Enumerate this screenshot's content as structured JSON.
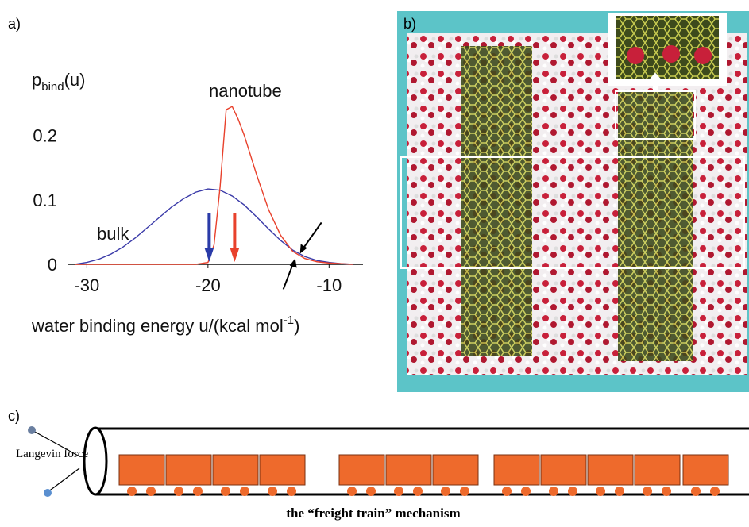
{
  "chart_data": {
    "type": "line",
    "y_label_parts": [
      "p",
      "bind",
      "(u)"
    ],
    "x_label_parts": [
      "water binding energy u/(kcal mol",
      "-1",
      ")"
    ],
    "series": [
      {
        "name": "bulk",
        "color": "#3a3aa8",
        "x": [
          -31,
          -30,
          -29,
          -28,
          -27,
          -26,
          -25,
          -24,
          -23,
          -22,
          -21,
          -20,
          -19,
          -18,
          -17,
          -16,
          -15,
          -14,
          -13,
          -12,
          -11,
          -10,
          -9,
          -8
        ],
        "values": [
          0,
          0.003,
          0.008,
          0.016,
          0.027,
          0.041,
          0.057,
          0.073,
          0.089,
          0.102,
          0.112,
          0.117,
          0.115,
          0.106,
          0.092,
          0.074,
          0.055,
          0.037,
          0.022,
          0.012,
          0.006,
          0.003,
          0.001,
          0
        ]
      },
      {
        "name": "nanotube",
        "color": "#e8412c",
        "x": [
          -31,
          -25,
          -21,
          -20,
          -19.5,
          -19,
          -18.5,
          -18,
          -17.5,
          -17,
          -16,
          -15,
          -14,
          -13,
          -12,
          -11,
          -10,
          -9,
          -8
        ],
        "values": [
          0,
          0,
          0,
          0.003,
          0.03,
          0.12,
          0.24,
          0.245,
          0.225,
          0.2,
          0.14,
          0.085,
          0.045,
          0.02,
          0.009,
          0.004,
          0.002,
          0.001,
          0
        ]
      }
    ],
    "mean_arrows": [
      {
        "x": -19.9,
        "color": "#2a3ba8"
      },
      {
        "x": -17.8,
        "color": "#e8412c"
      }
    ],
    "crossing_x": -12.6,
    "xlim": [
      -31.6,
      -7.2
    ],
    "ylim": [
      0,
      0.26
    ],
    "xticks": [
      -30,
      -20,
      -10
    ],
    "yticks": [
      0,
      0.1,
      0.2
    ],
    "grid": false
  },
  "figure": {
    "panel_labels": [
      "a)",
      "b)",
      "c)"
    ],
    "diagram": {
      "force_label": "Langevin force",
      "caption": "the “freight train” mechanism"
    }
  }
}
